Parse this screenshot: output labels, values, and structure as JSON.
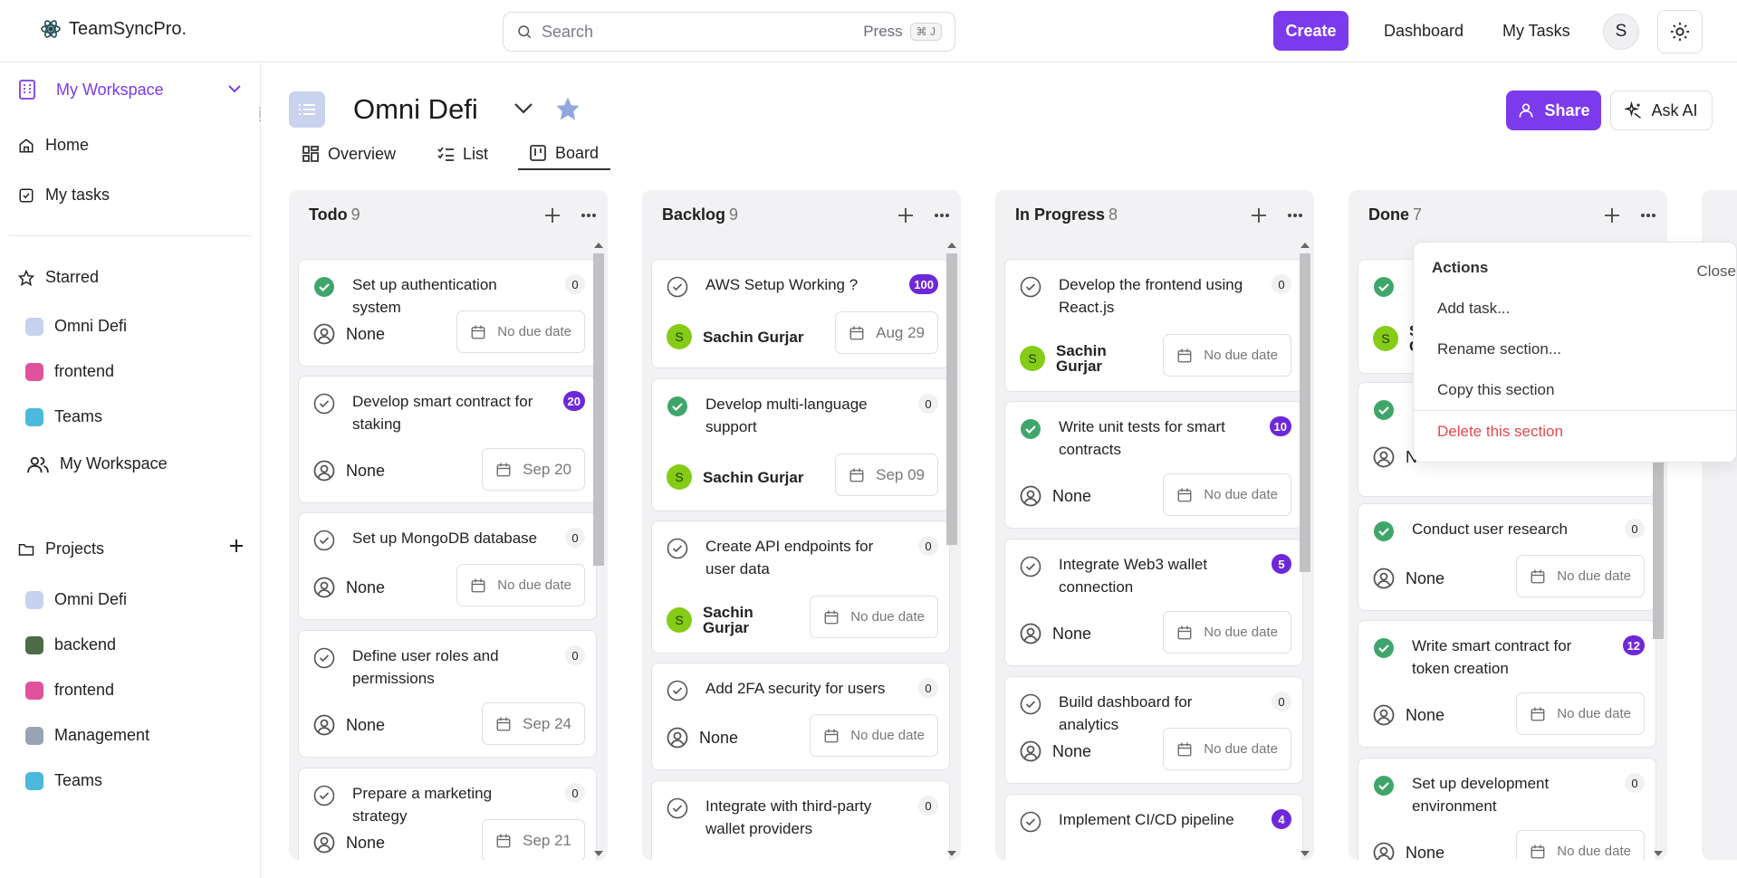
{
  "app": {
    "name": "TeamSyncPro."
  },
  "topbar": {
    "search_placeholder": "Search",
    "search_hint": "Press",
    "search_kbd": "⌘ J",
    "create_label": "Create",
    "dashboard_label": "Dashboard",
    "mytasks_label": "My Tasks",
    "avatar_initial": "S"
  },
  "sidebar": {
    "workspace_label": "My Workspace",
    "home_label": "Home",
    "mytasks_label": "My tasks",
    "starred_label": "Starred",
    "starred": [
      {
        "label": "Omni Defi",
        "color": "#c7d2ee"
      },
      {
        "label": "frontend",
        "color": "#e0529c"
      },
      {
        "label": "Teams",
        "color": "#4cb8dc"
      }
    ],
    "workspace_link_label": "My Workspace",
    "projects_label": "Projects",
    "projects": [
      {
        "label": "Omni Defi",
        "color": "#c7d2ee"
      },
      {
        "label": "backend",
        "color": "#4d6b46"
      },
      {
        "label": "frontend",
        "color": "#e0529c"
      },
      {
        "label": "Management",
        "color": "#9aa3b1"
      },
      {
        "label": "Teams",
        "color": "#4cb8dc"
      }
    ]
  },
  "project": {
    "title": "Omni Defi",
    "tabs": [
      "Overview",
      "List",
      "Board"
    ],
    "active_tab": "Board",
    "share_label": "Share",
    "askai_label": "Ask AI"
  },
  "columns": [
    {
      "name": "Todo",
      "count": "9"
    },
    {
      "name": "Backlog",
      "count": "9"
    },
    {
      "name": "In Progress",
      "count": "8"
    },
    {
      "name": "Done",
      "count": "7"
    }
  ],
  "cards": {
    "todo": [
      {
        "title": "Set up authentication system",
        "badge": "0",
        "assignee": "None",
        "due": "No due date",
        "done": true
      },
      {
        "title": "Develop smart contract for staking",
        "badge": "20",
        "assignee": "None",
        "due": "Sep 20",
        "done": false
      },
      {
        "title": "Set up MongoDB database",
        "badge": "0",
        "assignee": "None",
        "due": "No due date",
        "done": false
      },
      {
        "title": "Define user roles and permissions",
        "badge": "0",
        "assignee": "None",
        "due": "Sep 24",
        "done": false
      },
      {
        "title": "Prepare a marketing strategy",
        "badge": "0",
        "assignee": "None",
        "due": "Sep 21",
        "done": false
      }
    ],
    "backlog": [
      {
        "title": "AWS Setup Working ?",
        "badge": "100",
        "assignee": "Sachin Gurjar",
        "due": "Aug 29",
        "done": false
      },
      {
        "title": "Develop multi-language support",
        "badge": "0",
        "assignee": "Sachin Gurjar",
        "due": "Sep 09",
        "done": true
      },
      {
        "title": "Create API endpoints for user data",
        "badge": "0",
        "assignee_line1": "Sachin",
        "assignee_line2": "Gurjar",
        "due": "No due date",
        "done": false
      },
      {
        "title": "Add 2FA security for users",
        "badge": "0",
        "assignee": "None",
        "due": "No due date",
        "done": false
      },
      {
        "title": "Integrate with third-party wallet providers",
        "badge": "0",
        "done": false
      }
    ],
    "inprogress": [
      {
        "title": "Develop the frontend using React.js",
        "badge": "0",
        "assignee_line1": "Sachin",
        "assignee_line2": "Gurjar",
        "due": "No due date",
        "done": false
      },
      {
        "title": "Write unit tests for smart contracts",
        "badge": "10",
        "assignee": "None",
        "due": "No due date",
        "done": true
      },
      {
        "title": "Integrate Web3 wallet connection",
        "badge": "5",
        "assignee": "None",
        "due": "No due date",
        "done": false
      },
      {
        "title": "Build dashboard for analytics",
        "badge": "0",
        "assignee": "None",
        "due": "No due date",
        "done": false
      },
      {
        "title": "Implement CI/CD pipeline",
        "badge": "4",
        "done": false
      }
    ],
    "done": [
      {
        "assignee_initial": "S",
        "assignee_partial_1": "S",
        "assignee_partial_2": "C"
      },
      {
        "assignee_partial": "N"
      },
      {
        "title": "Conduct user research",
        "badge": "0",
        "assignee": "None",
        "due": "No due date",
        "done": true
      },
      {
        "title": "Write smart contract for token creation",
        "badge": "12",
        "assignee": "None",
        "due": "No due date",
        "done": true
      },
      {
        "title": "Set up development environment",
        "badge": "0",
        "assignee": "None",
        "due": "No due date",
        "done": true
      }
    ]
  },
  "section_menu": {
    "title": "Actions",
    "close_label": "Close",
    "items": [
      "Add task...",
      "Rename section...",
      "Copy this section"
    ],
    "delete_label": "Delete this section",
    "delete_color": "#e5484d"
  },
  "colors": {
    "accent": "#7c3aed",
    "done_check": "#3fa66b"
  }
}
